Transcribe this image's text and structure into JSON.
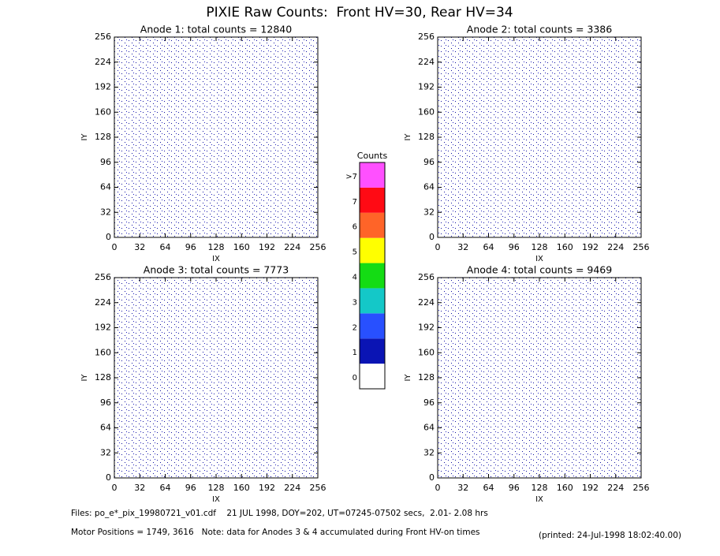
{
  "title": "PIXIE Raw Counts:  Front HV=30, Rear HV=34",
  "chart_data": [
    {
      "type": "heatmap",
      "title": "Anode 1: total counts = 12840",
      "xlabel": "IX",
      "ylabel": "IY",
      "xlim": [
        0,
        256
      ],
      "ylim": [
        0,
        256
      ],
      "xticks": [
        0,
        32,
        64,
        96,
        128,
        160,
        192,
        224,
        256
      ],
      "yticks": [
        0,
        32,
        64,
        96,
        128,
        160,
        192,
        224,
        256
      ]
    },
    {
      "type": "heatmap",
      "title": "Anode 2: total counts = 3386",
      "xlabel": "IX",
      "ylabel": "IY",
      "xlim": [
        0,
        256
      ],
      "ylim": [
        0,
        256
      ],
      "xticks": [
        0,
        32,
        64,
        96,
        128,
        160,
        192,
        224,
        256
      ],
      "yticks": [
        0,
        32,
        64,
        96,
        128,
        160,
        192,
        224,
        256
      ]
    },
    {
      "type": "heatmap",
      "title": "Anode 3: total counts = 7773",
      "xlabel": "IX",
      "ylabel": "IY",
      "xlim": [
        0,
        256
      ],
      "ylim": [
        0,
        256
      ],
      "xticks": [
        0,
        32,
        64,
        96,
        128,
        160,
        192,
        224,
        256
      ],
      "yticks": [
        0,
        32,
        64,
        96,
        128,
        160,
        192,
        224,
        256
      ]
    },
    {
      "type": "heatmap",
      "title": "Anode 4: total counts = 9469",
      "xlabel": "IX",
      "ylabel": "IY",
      "xlim": [
        0,
        256
      ],
      "ylim": [
        0,
        256
      ],
      "xticks": [
        0,
        32,
        64,
        96,
        128,
        160,
        192,
        224,
        256
      ],
      "yticks": [
        0,
        32,
        64,
        96,
        128,
        160,
        192,
        224,
        256
      ]
    }
  ],
  "colorbar": {
    "title": "Counts",
    "categories": [
      "0",
      "1",
      "2",
      "3",
      "4",
      "5",
      "6",
      "7",
      ">7"
    ],
    "colors": [
      "#ffffff",
      "#0a14b4",
      "#2850ff",
      "#14c8c8",
      "#14dc14",
      "#ffff00",
      "#ff6428",
      "#ff0a14",
      "#ff50ff"
    ]
  },
  "footer": {
    "files": "Files: po_e*_pix_19980721_v01.cdf    21 JUL 1998, DOY=202, UT=07245-07502 secs,  2.01- 2.08 hrs",
    "motor": "Motor Positions = 1749, 3616   Note: data for Anodes 3 & 4 accumulated during Front HV-on times",
    "printed": "(printed: 24-Jul-1998 18:02:40.00)"
  }
}
